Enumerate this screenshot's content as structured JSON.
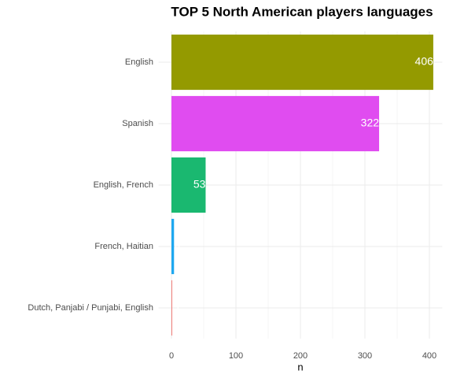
{
  "chart_data": {
    "type": "barh",
    "title": "TOP 5 North American players languages",
    "x_label": "n",
    "categories": [
      "English",
      "Spanish",
      "English, French",
      "French, Haitian",
      "Dutch, Panjabi / Punjabi, English"
    ],
    "values": [
      406,
      322,
      53,
      4,
      1
    ],
    "colors": [
      "#949a00",
      "#e04cf0",
      "#1ab870",
      "#1fa8f0",
      "#f0625e"
    ],
    "xlim": [
      -20,
      420
    ],
    "xticks": [
      0,
      100,
      200,
      300,
      400
    ],
    "xminor_ticks": [
      50,
      150,
      250,
      350
    ],
    "grid": true
  }
}
